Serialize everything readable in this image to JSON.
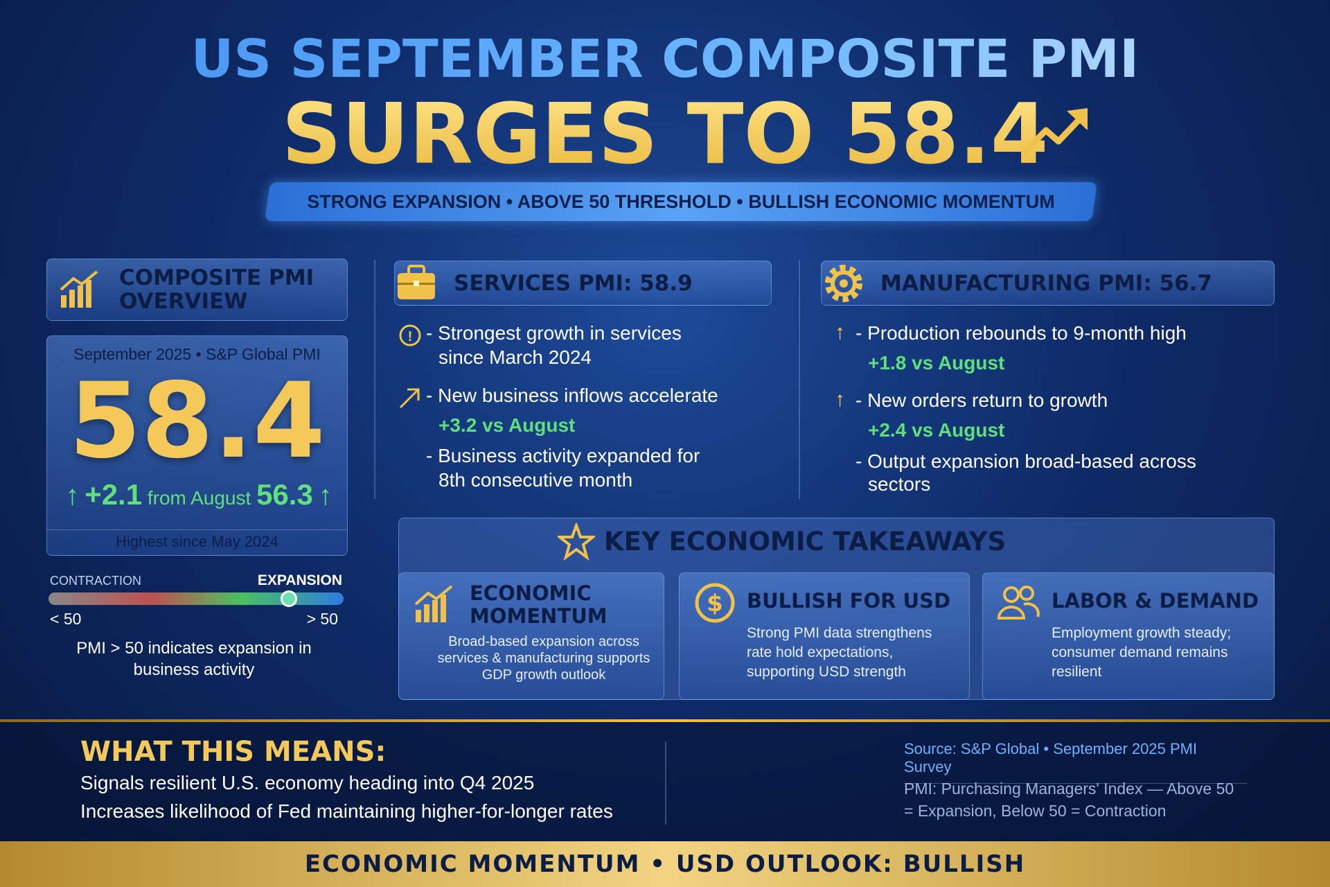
{
  "header": {
    "title_line1": "US SEPTEMBER COMPOSITE PMI",
    "title_line2": "SURGES TO 58.4",
    "tagline": "STRONG EXPANSION • ABOVE 50 THRESHOLD • BULLISH ECONOMIC MOMENTUM"
  },
  "overview": {
    "title": "COMPOSITE PMI OVERVIEW",
    "period": "September 2025 • S&P Global PMI",
    "value": "58.4",
    "change": "+2.1",
    "change_text": "from August",
    "previous": "56.3",
    "note": "Highest since May 2024"
  },
  "gauge": {
    "left_title": "CONTRACTION",
    "right_title": "EXPANSION",
    "left_label": "< 50",
    "right_label": "> 50",
    "caption": "PMI > 50 indicates expansion in business activity"
  },
  "services": {
    "title": "SERVICES PMI: 58.9",
    "bullets": [
      {
        "text": "- Strongest growth in services since March 2024"
      },
      {
        "text": "- New business inflows accelerate",
        "change": "+3.2",
        "change_text": "vs August"
      },
      {
        "text": "- Business activity expanded for 8th consecutive month"
      }
    ]
  },
  "manufacturing": {
    "title": "MANUFACTURING PMI: 56.7",
    "bullets": [
      {
        "text": "- Production rebounds to 9-month high",
        "change": "+1.8",
        "change_text": "vs August"
      },
      {
        "text": "- New orders return to growth",
        "change": "+2.4",
        "change_text": "vs August"
      },
      {
        "text": "- Output expansion broad-based across sectors"
      }
    ]
  },
  "takeaways": {
    "title": "KEY ECONOMIC TAKEAWAYS",
    "cards": [
      {
        "title": "ECONOMIC MOMENTUM",
        "text": "Broad-based expansion across services & manufacturing supports GDP growth outlook"
      },
      {
        "title": "BULLISH FOR USD",
        "text": "Strong PMI data strengthens rate hold expectations, supporting USD strength"
      },
      {
        "title": "LABOR & DEMAND",
        "text": "Employment growth steady; consumer demand remains resilient"
      }
    ]
  },
  "meaning": {
    "title": "WHAT THIS MEANS:",
    "lines": [
      "Signals resilient U.S. economy heading into Q4 2025",
      "Increases likelihood of Fed maintaining higher-for-longer rates"
    ]
  },
  "source": "Source: S&P Global • September 2025 PMI Survey",
  "definition": "PMI: Purchasing Managers' Index — Above 50 = Expansion, Below 50 = Contraction",
  "footer": "ECONOMIC MOMENTUM • USD OUTLOOK: BULLISH"
}
